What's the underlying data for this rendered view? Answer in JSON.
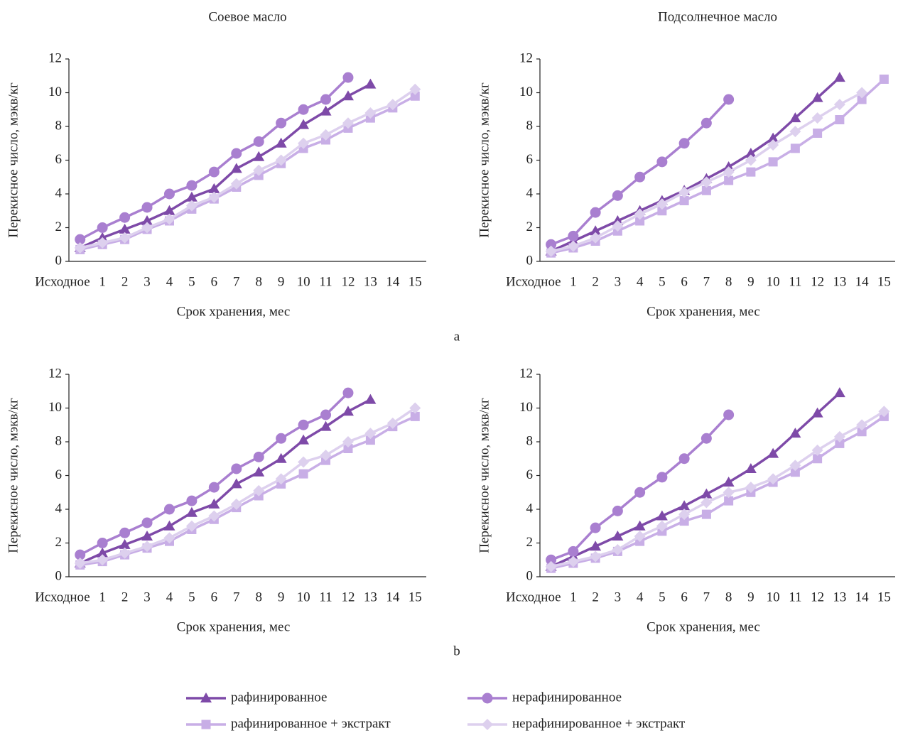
{
  "chart_data": [
    {
      "type": "line",
      "title": "Соевое масло",
      "x_label": "Срок хранения, мес",
      "y_label": "Перекисное число, мэкв/кг",
      "categories": [
        "Исходное",
        "1",
        "2",
        "3",
        "4",
        "5",
        "6",
        "7",
        "8",
        "9",
        "10",
        "11",
        "12",
        "13",
        "14",
        "15"
      ],
      "ylim": [
        0,
        12
      ],
      "yticks": [
        0,
        2,
        4,
        6,
        8,
        10,
        12
      ],
      "series": [
        {
          "name": "рафинированное",
          "color": "#7e4aa8",
          "marker": "triangle",
          "values": [
            0.8,
            1.4,
            1.9,
            2.4,
            3.0,
            3.8,
            4.3,
            5.5,
            6.2,
            7.0,
            8.1,
            8.9,
            9.8,
            10.5,
            null,
            null
          ]
        },
        {
          "name": "нерафинированное",
          "color": "#a97fd0",
          "marker": "circle",
          "values": [
            1.3,
            2.0,
            2.6,
            3.2,
            4.0,
            4.5,
            5.3,
            6.4,
            7.1,
            8.2,
            9.0,
            9.6,
            10.9,
            null,
            null,
            null
          ]
        },
        {
          "name": "рафинированное + экстракт",
          "color": "#c8aee6",
          "marker": "square",
          "values": [
            0.7,
            1.0,
            1.3,
            1.9,
            2.4,
            3.1,
            3.7,
            4.4,
            5.1,
            5.8,
            6.7,
            7.2,
            7.9,
            8.5,
            9.1,
            9.8
          ]
        },
        {
          "name": "нерафинированное + экстракт",
          "color": "#ddd0ee",
          "marker": "diamond",
          "values": [
            0.8,
            1.1,
            1.4,
            2.0,
            2.5,
            3.3,
            3.8,
            4.6,
            5.4,
            6.0,
            7.0,
            7.5,
            8.2,
            8.8,
            9.3,
            10.2
          ]
        }
      ]
    },
    {
      "type": "line",
      "title": "Подсолнечное масло",
      "x_label": "Срок хранения, мес",
      "y_label": "Перекисное число, мэкв/кг",
      "categories": [
        "Исходное",
        "1",
        "2",
        "3",
        "4",
        "5",
        "6",
        "7",
        "8",
        "9",
        "10",
        "11",
        "12",
        "13",
        "14",
        "15"
      ],
      "ylim": [
        0,
        12
      ],
      "yticks": [
        0,
        2,
        4,
        6,
        8,
        10,
        12
      ],
      "series": [
        {
          "color": "#7e4aa8",
          "marker": "triangle",
          "values": [
            0.6,
            1.2,
            1.8,
            2.4,
            3.0,
            3.6,
            4.2,
            4.9,
            5.6,
            6.4,
            7.3,
            8.5,
            9.7,
            10.9,
            null,
            null
          ]
        },
        {
          "color": "#a97fd0",
          "marker": "circle",
          "values": [
            1.0,
            1.5,
            2.9,
            3.9,
            5.0,
            5.9,
            7.0,
            8.2,
            9.6,
            null,
            null,
            null,
            null,
            null,
            null,
            null
          ]
        },
        {
          "color": "#c8aee6",
          "marker": "square",
          "values": [
            0.5,
            0.8,
            1.2,
            1.8,
            2.4,
            3.0,
            3.6,
            4.2,
            4.8,
            5.3,
            5.9,
            6.7,
            7.6,
            8.4,
            9.6,
            10.8
          ]
        },
        {
          "color": "#ddd0ee",
          "marker": "diamond",
          "values": [
            0.6,
            0.9,
            1.4,
            2.1,
            2.8,
            3.4,
            4.1,
            4.7,
            5.3,
            6.0,
            6.9,
            7.7,
            8.5,
            9.3,
            10.0,
            null
          ]
        }
      ]
    },
    {
      "type": "line",
      "x_label": "Срок хранения, мес",
      "y_label": "Перекисное число, мэкв/кг",
      "categories": [
        "Исходное",
        "1",
        "2",
        "3",
        "4",
        "5",
        "6",
        "7",
        "8",
        "9",
        "10",
        "11",
        "12",
        "13",
        "14",
        "15"
      ],
      "ylim": [
        0,
        12
      ],
      "yticks": [
        0,
        2,
        4,
        6,
        8,
        10,
        12
      ],
      "series": [
        {
          "color": "#7e4aa8",
          "marker": "triangle",
          "values": [
            0.8,
            1.4,
            1.9,
            2.4,
            3.0,
            3.8,
            4.3,
            5.5,
            6.2,
            7.0,
            8.1,
            8.9,
            9.8,
            10.5,
            null,
            null
          ]
        },
        {
          "color": "#a97fd0",
          "marker": "circle",
          "values": [
            1.3,
            2.0,
            2.6,
            3.2,
            4.0,
            4.5,
            5.3,
            6.4,
            7.1,
            8.2,
            9.0,
            9.6,
            10.9,
            null,
            null,
            null
          ]
        },
        {
          "color": "#c8aee6",
          "marker": "square",
          "values": [
            0.7,
            0.9,
            1.3,
            1.7,
            2.1,
            2.8,
            3.4,
            4.1,
            4.8,
            5.5,
            6.1,
            6.9,
            7.6,
            8.1,
            8.9,
            9.5
          ]
        },
        {
          "color": "#ddd0ee",
          "marker": "diamond",
          "values": [
            0.8,
            1.0,
            1.4,
            1.8,
            2.3,
            3.0,
            3.6,
            4.3,
            5.1,
            5.8,
            6.8,
            7.2,
            8.0,
            8.5,
            9.1,
            10.0
          ]
        }
      ]
    },
    {
      "type": "line",
      "x_label": "Срок хранения, мес",
      "y_label": "Перекисное число, мэкв/кг",
      "categories": [
        "Исходное",
        "1",
        "2",
        "3",
        "4",
        "5",
        "6",
        "7",
        "8",
        "9",
        "10",
        "11",
        "12",
        "13",
        "14",
        "15"
      ],
      "ylim": [
        0,
        12
      ],
      "yticks": [
        0,
        2,
        4,
        6,
        8,
        10,
        12
      ],
      "series": [
        {
          "color": "#7e4aa8",
          "marker": "triangle",
          "values": [
            0.6,
            1.2,
            1.8,
            2.4,
            3.0,
            3.6,
            4.2,
            4.9,
            5.6,
            6.4,
            7.3,
            8.5,
            9.7,
            10.9,
            null,
            null
          ]
        },
        {
          "color": "#a97fd0",
          "marker": "circle",
          "values": [
            1.0,
            1.5,
            2.9,
            3.9,
            5.0,
            5.9,
            7.0,
            8.2,
            9.6,
            null,
            null,
            null,
            null,
            null,
            null,
            null
          ]
        },
        {
          "color": "#c8aee6",
          "marker": "square",
          "values": [
            0.5,
            0.8,
            1.1,
            1.5,
            2.1,
            2.7,
            3.3,
            3.7,
            4.5,
            5.0,
            5.6,
            6.2,
            7.0,
            7.9,
            8.6,
            9.5
          ]
        },
        {
          "color": "#ddd0ee",
          "marker": "diamond",
          "values": [
            0.6,
            0.9,
            1.2,
            1.6,
            2.4,
            3.0,
            3.7,
            4.4,
            5.0,
            5.3,
            5.8,
            6.6,
            7.5,
            8.3,
            9.0,
            9.8
          ]
        }
      ]
    }
  ],
  "panels": [
    "a",
    "b"
  ]
}
